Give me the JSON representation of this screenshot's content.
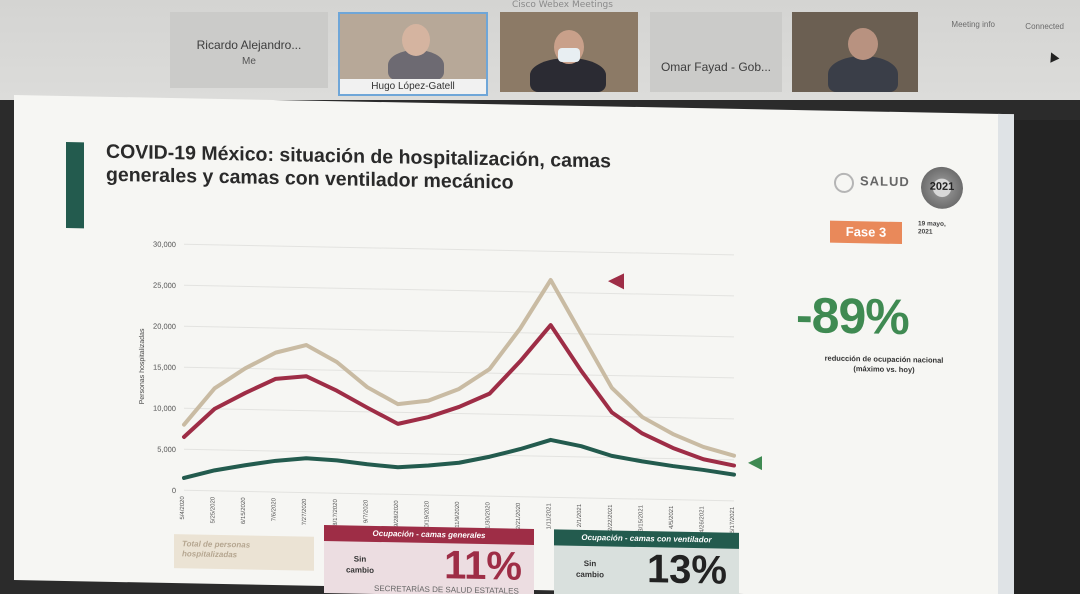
{
  "meeting": {
    "title": "Cisco Webex Meetings",
    "info_label": "Meeting info",
    "status": "Connected",
    "participants": [
      {
        "name": "Ricardo Alejandro...",
        "sub": "Me"
      },
      {
        "name": "Hugo López-Gatell"
      },
      {
        "name": ""
      },
      {
        "name": "Omar Fayad - Gob..."
      },
      {
        "name": ""
      }
    ]
  },
  "slide": {
    "title_line1": "COVID-19 México: situación de hospitalización, camas",
    "title_line2": "generales y camas con ventilador mecánico",
    "logo_text": "SALUD",
    "seal_year": "2021",
    "phase": "Fase 3",
    "date": "19 mayo, 2021",
    "big_stat": "-89%",
    "big_stat_caption": "reducción de ocupación nacional (máximo vs. hoy)",
    "total_label": "Total de personas hospitalizadas",
    "occupancy_general_title": "Ocupación - camas generales",
    "occupancy_general_note": "Sin cambio",
    "occupancy_general_pct": "11%",
    "occupancy_vent_title": "Ocupación - camas con ventilador",
    "occupancy_vent_note": "Sin cambio",
    "occupancy_vent_pct": "13%",
    "source": "SECRETARÍAS DE SALUD ESTATALES",
    "colors": {
      "total": "#c9bba3",
      "general": "#9e2d46",
      "ventilator": "#235b4e",
      "accent": "#235b4e",
      "phase": "#e9895a",
      "stat": "#3f8a52"
    }
  },
  "chart_data": {
    "type": "line",
    "ylabel": "Personas hospitalizadas",
    "ylim": [
      0,
      30000
    ],
    "yticks": [
      "30,000",
      "25,000",
      "20,000",
      "15,000",
      "10,000",
      "5,000",
      "0"
    ],
    "x": [
      "5/4/2020",
      "5/25/2020",
      "6/15/2020",
      "7/6/2020",
      "7/27/2020",
      "8/17/2020",
      "9/7/2020",
      "9/28/2020",
      "10/19/2020",
      "11/9/2020",
      "11/30/2020",
      "12/21/2020",
      "1/11/2021",
      "2/1/2021",
      "2/22/2021",
      "3/15/2021",
      "4/5/2021",
      "4/26/2021",
      "5/17/2021"
    ],
    "series": [
      {
        "name": "Total de personas hospitalizadas",
        "values": [
          8000,
          12500,
          15000,
          17000,
          18000,
          16000,
          13000,
          11000,
          11500,
          13000,
          15500,
          20500,
          26500,
          20000,
          13500,
          10000,
          8000,
          6500,
          5500
        ]
      },
      {
        "name": "Ocupación - camas generales",
        "values": [
          6500,
          10000,
          12000,
          13800,
          14200,
          12500,
          10500,
          8600,
          9500,
          10800,
          12500,
          16500,
          21000,
          15500,
          10500,
          8000,
          6300,
          5000,
          4300
        ]
      },
      {
        "name": "Ocupación - camas con ventilador",
        "values": [
          1500,
          2500,
          3200,
          3800,
          4200,
          4000,
          3600,
          3300,
          3600,
          4000,
          4800,
          5800,
          7000,
          6300,
          5200,
          4600,
          4100,
          3700,
          3200
        ]
      }
    ],
    "legend": "none"
  }
}
